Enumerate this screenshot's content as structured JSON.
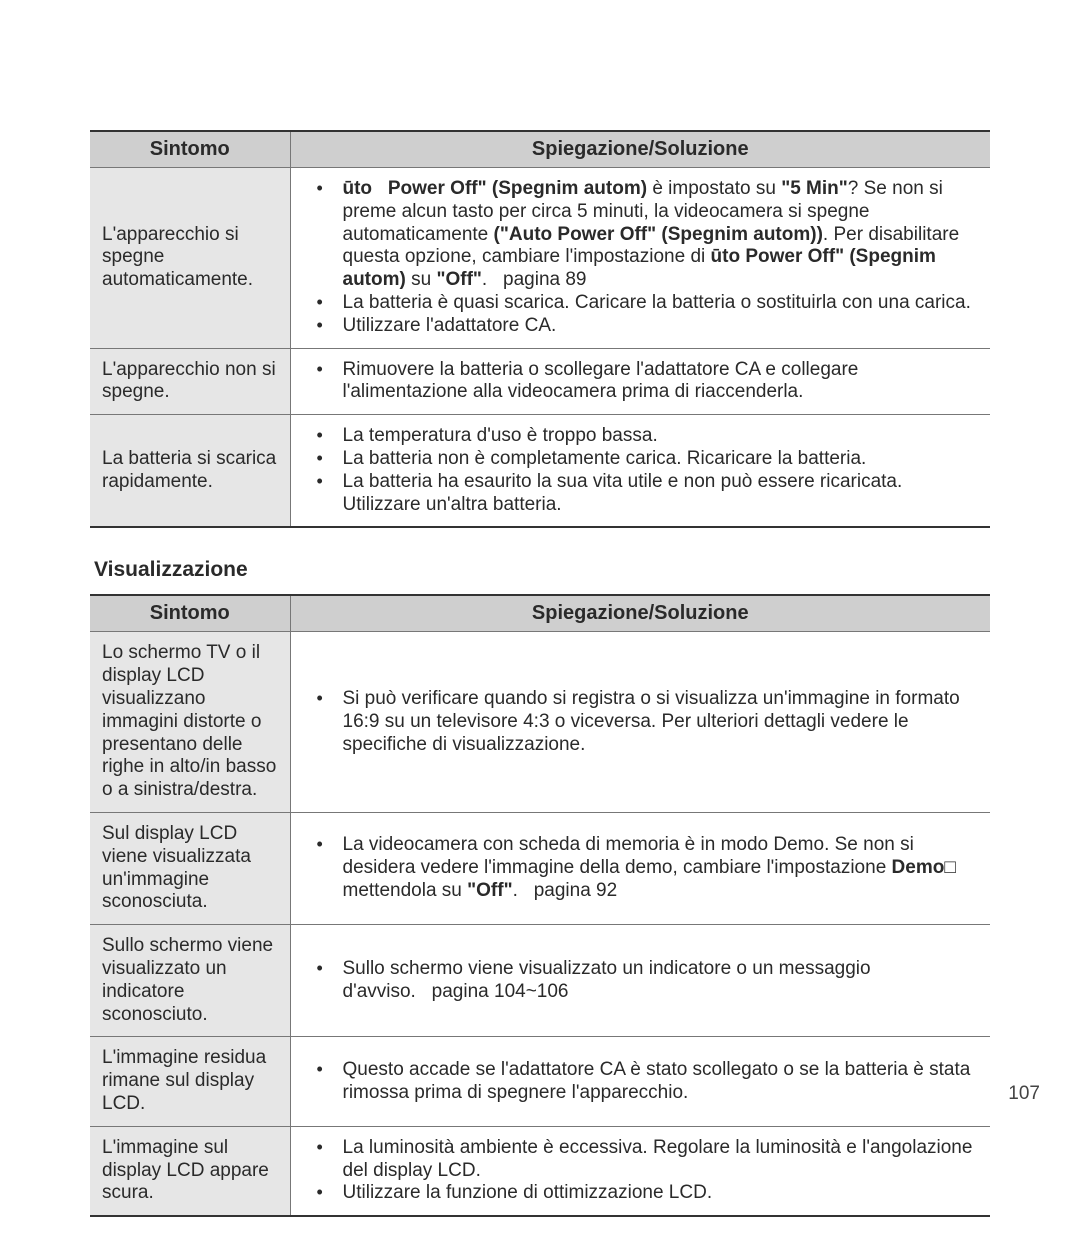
{
  "page_number": "107",
  "table1": {
    "headers": {
      "symptom": "Sintomo",
      "explanation": "Spiegazione/Soluzione"
    },
    "rows": [
      {
        "symptom": "L'apparecchio si spegne automaticamente.",
        "items": [
          {
            "html": "<b>ūto &nbsp; Power Off\" (Spegnim autom)</b> è impostato su <b>\"5 Min\"</b>? Se non si preme alcun tasto per circa 5 minuti, la videocamera si spegne automaticamente <b>(\"Auto Power Off\" (Spegnim autom))</b>. Per disabilitare questa opzione, cambiare l'impostazione di <b>ūto Power Off\" (Spegnim autom)</b> su <b>\"Off\"</b>.&nbsp;&nbsp;&nbsp;pagina 89"
          },
          {
            "text": "La batteria è quasi scarica. Caricare la batteria o sostituirla con una carica."
          },
          {
            "text": "Utilizzare l'adattatore CA."
          }
        ]
      },
      {
        "symptom": "L'apparecchio non si spegne.",
        "items": [
          {
            "text": "Rimuovere la batteria o scollegare l'adattatore CA e collegare l'alimentazione alla videocamera prima di riaccenderla."
          }
        ]
      },
      {
        "symptom": "La batteria si scarica rapidamente.",
        "items": [
          {
            "text": "La temperatura d'uso è troppo bassa."
          },
          {
            "text": "La batteria non è completamente carica. Ricaricare la batteria."
          },
          {
            "text": "La batteria ha esaurito la sua vita utile e non può essere ricaricata. Utilizzare un'altra batteria."
          }
        ]
      }
    ]
  },
  "section2_title": "Visualizzazione",
  "table2": {
    "headers": {
      "symptom": "Sintomo",
      "explanation": "Spiegazione/Soluzione"
    },
    "rows": [
      {
        "symptom": "Lo schermo TV o il display LCD visualizzano immagini distorte o presentano delle righe in alto/in basso o a sinistra/destra.",
        "items": [
          {
            "text": "Si può verificare quando si registra o si visualizza un'immagine in formato 16:9 su un televisore 4:3 o viceversa. Per ulteriori dettagli vedere le specifiche di visualizzazione."
          }
        ]
      },
      {
        "symptom": "Sul display LCD viene visualizzata un'immagine sconosciuta.",
        "items": [
          {
            "html": "La videocamera con scheda di memoria è in modo Demo. Se non si desidera vedere l'immagine della demo, cambiare l'impostazione <b>Demo</b>□ mettendola su <b>\"Off\"</b>.&nbsp;&nbsp;&nbsp;pagina 92"
          }
        ]
      },
      {
        "symptom": "Sullo schermo viene visualizzato un indicatore sconosciuto.",
        "items": [
          {
            "html": "Sullo schermo viene visualizzato un indicatore o un messaggio d'avviso.&nbsp;&nbsp;&nbsp;pagina 104~106"
          }
        ]
      },
      {
        "symptom": "L'immagine residua rimane sul display LCD.",
        "items": [
          {
            "text": "Questo accade se l'adattatore CA è stato scollegato o se la batteria è stata rimossa prima di spegnere l'apparecchio."
          }
        ]
      },
      {
        "symptom": "L'immagine sul display LCD appare scura.",
        "items": [
          {
            "text": "La luminosità ambiente è eccessiva. Regolare la luminosità e l'angolazione del display LCD."
          },
          {
            "text": "Utilizzare la funzione di ottimizzazione LCD."
          }
        ]
      }
    ]
  }
}
